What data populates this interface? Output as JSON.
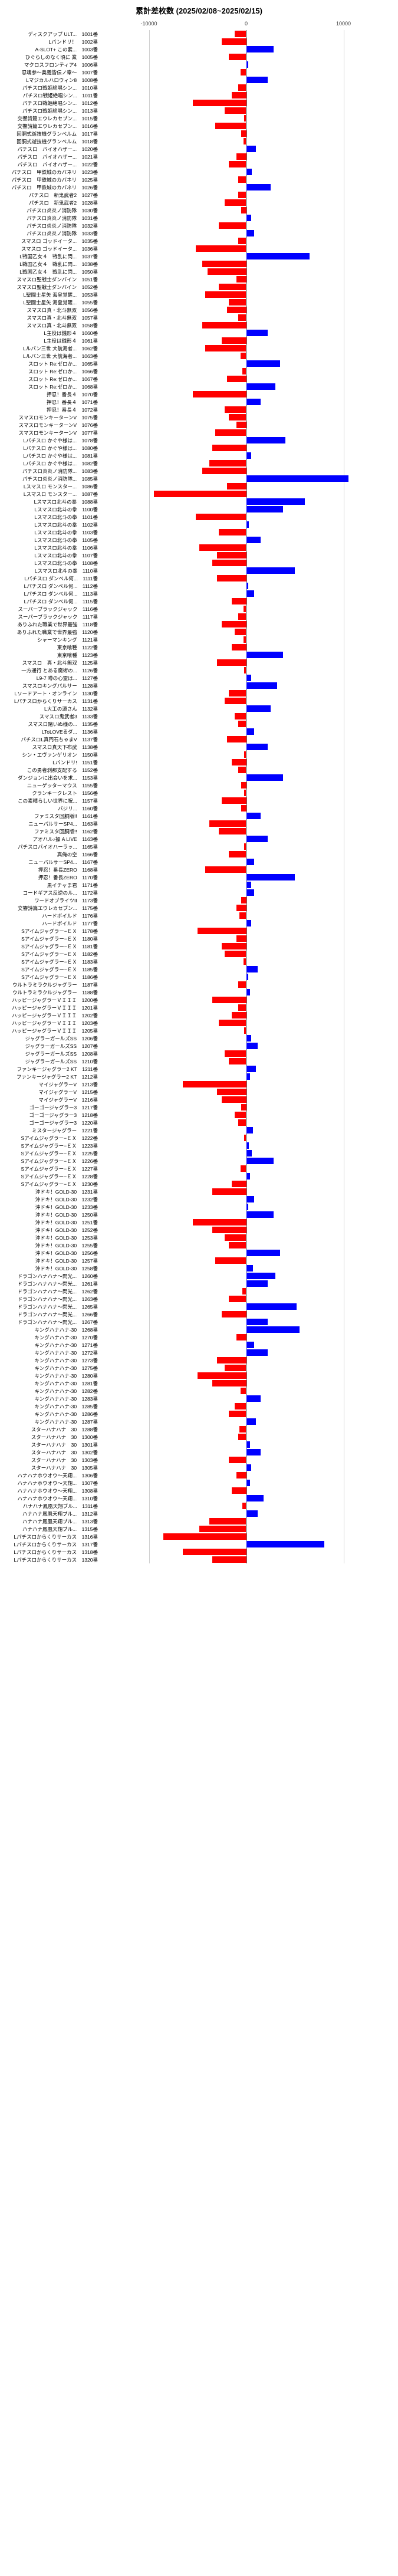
{
  "title": "累計差枚数 (2025/02/08~2025/02/15)",
  "axis": {
    "min": -15000,
    "max": 15000,
    "ticks": [
      -10000,
      0,
      10000
    ]
  },
  "colors": {
    "positive": "#0000ff",
    "negative": "#ff0000",
    "grid": "#d0d0d0",
    "zero": "#666666",
    "text": "#000000",
    "background": "#ffffff"
  },
  "rows": [
    {
      "label": "ディスクアップ ULT...",
      "id": "1001番",
      "value": -1200
    },
    {
      "label": "Lバンドリ！",
      "id": "1002番",
      "value": -2500
    },
    {
      "label": "A-SLOT+ この素...",
      "id": "1003番",
      "value": 2800
    },
    {
      "label": "ひぐらしのなく頃に 業",
      "id": "1005番",
      "value": -1800
    },
    {
      "label": "マクロスフロンティア4",
      "id": "1006番",
      "value": 200
    },
    {
      "label": "忍魂参〜奥義皆伝ノ章〜",
      "id": "1007番",
      "value": -600
    },
    {
      "label": "Lマジカルハロウィン8",
      "id": "1008番",
      "value": 2200
    },
    {
      "label": "パチスロ戦姫絶唱シン...",
      "id": "1010番",
      "value": -800
    },
    {
      "label": "パチスロ戦姫絶唱シン...",
      "id": "1011番",
      "value": -1500
    },
    {
      "label": "パチスロ戦姫絶唱シン...",
      "id": "1012番",
      "value": -5500
    },
    {
      "label": "パチスロ戦姫絶唱シン...",
      "id": "1013番",
      "value": -2200
    },
    {
      "label": "交響詩篇エウレカセブン...",
      "id": "1015番",
      "value": -200
    },
    {
      "label": "交響詩篇エウレカセブン...",
      "id": "1016番",
      "value": -3200
    },
    {
      "label": "回胴式遊技機グランベルム",
      "id": "1017番",
      "value": -500
    },
    {
      "label": "回胴式遊技機グランベルム",
      "id": "1018番",
      "value": -300
    },
    {
      "label": "パチスロ　バイオハザー...",
      "id": "1020番",
      "value": 1000
    },
    {
      "label": "パチスロ　バイオハザー...",
      "id": "1021番",
      "value": -1000
    },
    {
      "label": "パチスロ　バイオハザー...",
      "id": "1022番",
      "value": -1800
    },
    {
      "label": "パチスロ　甲鉄城のカバネリ",
      "id": "1023番",
      "value": 600
    },
    {
      "label": "パチスロ　甲鉄城のカバネリ",
      "id": "1025番",
      "value": -800
    },
    {
      "label": "パチスロ　甲鉄城のカバネリ",
      "id": "1026番",
      "value": 2500
    },
    {
      "label": "パチスロ　新鬼武者2",
      "id": "1027番",
      "value": -800
    },
    {
      "label": "パチスロ　新鬼武者2",
      "id": "1028番",
      "value": -2200
    },
    {
      "label": "パチスロ炎炎ノ消防隊",
      "id": "1030番",
      "value": -500
    },
    {
      "label": "パチスロ炎炎ノ消防隊",
      "id": "1031番",
      "value": 500
    },
    {
      "label": "パチスロ炎炎ノ消防隊",
      "id": "1032番",
      "value": -2800
    },
    {
      "label": "パチスロ炎炎ノ消防隊",
      "id": "1033番",
      "value": 800
    },
    {
      "label": "スマスロ ゴッドイータ...",
      "id": "1035番",
      "value": -800
    },
    {
      "label": "スマスロ ゴッドイータ...",
      "id": "1036番",
      "value": -5200
    },
    {
      "label": "L戦国乙女４　戦乱に閃...",
      "id": "1037番",
      "value": 6500
    },
    {
      "label": "L戦国乙女４　戦乱に閃...",
      "id": "1038番",
      "value": -4500
    },
    {
      "label": "L戦国乙女４　戦乱に閃...",
      "id": "1050番",
      "value": -4000
    },
    {
      "label": "スマスロ聖戦士ダンバイン",
      "id": "1051番",
      "value": -1000
    },
    {
      "label": "スマスロ聖戦士ダンバイン",
      "id": "1052番",
      "value": -2800
    },
    {
      "label": "L聖闘士星矢 海皇覚醒...",
      "id": "1053番",
      "value": -4200
    },
    {
      "label": "L聖闘士星矢 海皇覚醒...",
      "id": "1055番",
      "value": -1800
    },
    {
      "label": "スマスロ真・北斗無双",
      "id": "1056番",
      "value": -2000
    },
    {
      "label": "スマスロ真・北斗無双",
      "id": "1057番",
      "value": -800
    },
    {
      "label": "スマスロ真・北斗無双",
      "id": "1058番",
      "value": -4500
    },
    {
      "label": "L主役は銭形４",
      "id": "1060番",
      "value": 2200
    },
    {
      "label": "L主役は銭形４",
      "id": "1061番",
      "value": -2500
    },
    {
      "label": "Lルパン三世 大航海者...",
      "id": "1062番",
      "value": -4200
    },
    {
      "label": "Lルパン三世 大航海者...",
      "id": "1063番",
      "value": -600
    },
    {
      "label": "スロット Re:ゼロか...",
      "id": "1065番",
      "value": 3500
    },
    {
      "label": "スロット Re:ゼロか...",
      "id": "1066番",
      "value": -400
    },
    {
      "label": "スロット Re:ゼロか...",
      "id": "1067番",
      "value": -2000
    },
    {
      "label": "スロット Re:ゼロか...",
      "id": "1068番",
      "value": 3000
    },
    {
      "label": "押忍！番長４",
      "id": "1070番",
      "value": -5500
    },
    {
      "label": "押忍！番長４",
      "id": "1071番",
      "value": 1500
    },
    {
      "label": "押忍！番長４",
      "id": "1072番",
      "value": -2200
    },
    {
      "label": "スマスロモンキーターンV",
      "id": "1075番",
      "value": -1800
    },
    {
      "label": "スマスロモンキーターンV",
      "id": "1076番",
      "value": -1000
    },
    {
      "label": "スマスロモンキーターンV",
      "id": "1077番",
      "value": -3200
    },
    {
      "label": "Lパチスロ かぐや様は...",
      "id": "1078番",
      "value": 4000
    },
    {
      "label": "Lパチスロ かぐや様は...",
      "id": "1080番",
      "value": -3500
    },
    {
      "label": "Lパチスロ かぐや様は...",
      "id": "1081番",
      "value": 500
    },
    {
      "label": "Lパチスロ かぐや様は...",
      "id": "1082番",
      "value": -3800
    },
    {
      "label": "パチスロ炎炎ノ消防隊...",
      "id": "1083番",
      "value": -4500
    },
    {
      "label": "パチスロ炎炎ノ消防隊...",
      "id": "1085番",
      "value": 10500
    },
    {
      "label": "Lスマスロ モンスター...",
      "id": "1086番",
      "value": -2000
    },
    {
      "label": "Lスマスロ モンスター...",
      "id": "1087番",
      "value": -9500
    },
    {
      "label": "Lスマスロ北斗の拳",
      "id": "1088番",
      "value": 6000
    },
    {
      "label": "Lスマスロ北斗の拳",
      "id": "1100番",
      "value": 3800
    },
    {
      "label": "Lスマスロ北斗の拳",
      "id": "1101番",
      "value": -5200
    },
    {
      "label": "Lスマスロ北斗の拳",
      "id": "1102番",
      "value": 300
    },
    {
      "label": "Lスマスロ北斗の拳",
      "id": "1103番",
      "value": -2800
    },
    {
      "label": "Lスマスロ北斗の拳",
      "id": "1105番",
      "value": 1500
    },
    {
      "label": "Lスマスロ北斗の拳",
      "id": "1106番",
      "value": -4800
    },
    {
      "label": "Lスマスロ北斗の拳",
      "id": "1107番",
      "value": -3000
    },
    {
      "label": "Lスマスロ北斗の拳",
      "id": "1108番",
      "value": -3500
    },
    {
      "label": "Lスマスロ北斗の拳",
      "id": "1110番",
      "value": 5000
    },
    {
      "label": "Lパチスロ ダンベル何...",
      "id": "1111番",
      "value": -3000
    },
    {
      "label": "Lパチスロ ダンベル何...",
      "id": "1112番",
      "value": 200
    },
    {
      "label": "Lパチスロ ダンベル何...",
      "id": "1113番",
      "value": 800
    },
    {
      "label": "Lパチスロ ダンベル何...",
      "id": "1115番",
      "value": -1500
    },
    {
      "label": "スーパーブラックジャック",
      "id": "1116番",
      "value": -300
    },
    {
      "label": "スーパーブラックジャック",
      "id": "1117番",
      "value": -800
    },
    {
      "label": "ありふれた職業で世界最強",
      "id": "1118番",
      "value": -2500
    },
    {
      "label": "ありふれた職業で世界最強",
      "id": "1120番",
      "value": -1200
    },
    {
      "label": "シャーマンキング",
      "id": "1121番",
      "value": -300
    },
    {
      "label": "東京喰種",
      "id": "1122番",
      "value": -1500
    },
    {
      "label": "東京喰種",
      "id": "1123番",
      "value": 3800
    },
    {
      "label": "スマスロ　真・北斗無双",
      "id": "1125番",
      "value": -3000
    },
    {
      "label": "一方通行 とある魔術の...",
      "id": "1126番",
      "value": -200
    },
    {
      "label": "L9-7 噂の心霊は...",
      "id": "1127番",
      "value": 500
    },
    {
      "label": "スマスロキングパルサー",
      "id": "1128番",
      "value": 3200
    },
    {
      "label": "Lソードアート・オンライン",
      "id": "1130番",
      "value": -1800
    },
    {
      "label": "Lパチスロからくりサーカス",
      "id": "1131番",
      "value": -2200
    },
    {
      "label": "L大工の源さん",
      "id": "1132番",
      "value": 2500
    },
    {
      "label": "スマスロ鬼武者3",
      "id": "1133番",
      "value": -1200
    },
    {
      "label": "スマスロ賭いぬ様の...",
      "id": "1135番",
      "value": -800
    },
    {
      "label": "LToLOVEるダ...",
      "id": "1136番",
      "value": 800
    },
    {
      "label": "パチスロL真門石ちゃまV",
      "id": "1137番",
      "value": -2000
    },
    {
      "label": "スマスロ真天下布武",
      "id": "1138番",
      "value": 2200
    },
    {
      "label": "シン・エヴァンゲリオン",
      "id": "1150番",
      "value": -200
    },
    {
      "label": "Lバンドリ!",
      "id": "1151番",
      "value": -1500
    },
    {
      "label": "この勇者刹那支配する",
      "id": "1152番",
      "value": -800
    },
    {
      "label": "ダンジョンに出会いを求...",
      "id": "1153番",
      "value": 3800
    },
    {
      "label": "ニューゲッターマウス",
      "id": "1155番",
      "value": -500
    },
    {
      "label": "クランキークレスト",
      "id": "1156番",
      "value": -200
    },
    {
      "label": "この素晴らしい世界に祝...",
      "id": "1157番",
      "value": -2500
    },
    {
      "label": "バジリ...",
      "id": "1160番",
      "value": -500
    },
    {
      "label": "ファミスタ回胴版!!",
      "id": "1161番",
      "value": 1500
    },
    {
      "label": "ニューパルサーSP4...",
      "id": "1163番",
      "value": -3800
    },
    {
      "label": "ファミスタ回胴版!!",
      "id": "1162番",
      "value": -2800
    },
    {
      "label": "アオハル♪操 A LIVE",
      "id": "1163番",
      "value": 2200
    },
    {
      "label": "パチスロバイオハーラッ...",
      "id": "1165番",
      "value": -200
    },
    {
      "label": "真俺の空",
      "id": "1166番",
      "value": -1800
    },
    {
      "label": "ニューパルサーSP4...",
      "id": "1167番",
      "value": 800
    },
    {
      "label": "押忍！番長ZERO",
      "id": "1168番",
      "value": -4200
    },
    {
      "label": "押忍！番長ZERO",
      "id": "1170番",
      "value": 5000
    },
    {
      "label": "黒イチャま君",
      "id": "1171番",
      "value": 500
    },
    {
      "label": "コードギアス反逆のル...",
      "id": "1172番",
      "value": 800
    },
    {
      "label": "ワードオブライツII",
      "id": "1173番",
      "value": -500
    },
    {
      "label": "交響詩篇エウレカセブン...",
      "id": "1175番",
      "value": -1000
    },
    {
      "label": "ハードボイルド",
      "id": "1176番",
      "value": -700
    },
    {
      "label": "ハードボイルド",
      "id": "1177番",
      "value": 500
    },
    {
      "label": "Sアイムジャグラー−ＥＸ",
      "id": "1178番",
      "value": -5000
    },
    {
      "label": "Sアイムジャグラー−ＥＸ",
      "id": "1180番",
      "value": -1000
    },
    {
      "label": "Sアイムジャグラー−ＥＸ",
      "id": "1181番",
      "value": -2500
    },
    {
      "label": "Sアイムジャグラー−ＥＸ",
      "id": "1182番",
      "value": -2200
    },
    {
      "label": "Sアイムジャグラー−ＥＸ",
      "id": "1183番",
      "value": -300
    },
    {
      "label": "Sアイムジャグラー−ＥＸ",
      "id": "1185番",
      "value": 1200
    },
    {
      "label": "Sアイムジャグラー−ＥＸ",
      "id": "1186番",
      "value": 200
    },
    {
      "label": "ウルトラミラクルジャグラー",
      "id": "1187番",
      "value": -800
    },
    {
      "label": "ウルトラミラクルジャグラー",
      "id": "1188番",
      "value": 400
    },
    {
      "label": "ハッピージャグラーＶＩＩＩ",
      "id": "1200番",
      "value": -3500
    },
    {
      "label": "ハッピージャグラーＶＩＩＩ",
      "id": "1201番",
      "value": -800
    },
    {
      "label": "ハッピージャグラーＶＩＩＩ",
      "id": "1202番",
      "value": -1500
    },
    {
      "label": "ハッピージャグラーＶＩＩＩ",
      "id": "1203番",
      "value": -2800
    },
    {
      "label": "ハッピージャグラーＶＩＩＩ",
      "id": "1205番",
      "value": -200
    },
    {
      "label": "ジャグラーガールズSS",
      "id": "1206番",
      "value": 500
    },
    {
      "label": "ジャグラーガールズSS",
      "id": "1207番",
      "value": 1200
    },
    {
      "label": "ジャグラーガールズSS",
      "id": "1208番",
      "value": -2200
    },
    {
      "label": "ジャグラーガールズSS",
      "id": "1210番",
      "value": -1800
    },
    {
      "label": "ファンキージャグラー2 KT",
      "id": "1211番",
      "value": 1000
    },
    {
      "label": "ファンキージャグラー2 KT",
      "id": "1212番",
      "value": 400
    },
    {
      "label": "マイジャグラーV",
      "id": "1213番",
      "value": -6500
    },
    {
      "label": "マイジャグラーV",
      "id": "1215番",
      "value": -3000
    },
    {
      "label": "マイジャグラーV",
      "id": "1216番",
      "value": -2500
    },
    {
      "label": "ゴーゴージャグラー3",
      "id": "1217番",
      "value": -500
    },
    {
      "label": "ゴーゴージャグラー3",
      "id": "1218番",
      "value": -1200
    },
    {
      "label": "ゴーゴージャグラー3",
      "id": "1220番",
      "value": -800
    },
    {
      "label": "ミスタージャグラー",
      "id": "1221番",
      "value": 700
    },
    {
      "label": "Sアイムジャグラー−ＥＸ",
      "id": "1222番",
      "value": -200
    },
    {
      "label": "Sアイムジャグラー−ＥＸ",
      "id": "1223番",
      "value": 300
    },
    {
      "label": "Sアイムジャグラー−ＥＸ",
      "id": "1225番",
      "value": 600
    },
    {
      "label": "Sアイムジャグラー−ＥＸ",
      "id": "1226番",
      "value": 2800
    },
    {
      "label": "Sアイムジャグラー−ＥＸ",
      "id": "1227番",
      "value": -600
    },
    {
      "label": "Sアイムジャグラー−ＥＸ",
      "id": "1228番",
      "value": 400
    },
    {
      "label": "Sアイムジャグラー−ＥＸ",
      "id": "1230番",
      "value": -1500
    },
    {
      "label": "沖ドキ！GOLD-30",
      "id": "1231番",
      "value": -3500
    },
    {
      "label": "沖ドキ！GOLD-30",
      "id": "1232番",
      "value": 800
    },
    {
      "label": "沖ドキ！GOLD-30",
      "id": "1233番",
      "value": 200
    },
    {
      "label": "沖ドキ！GOLD-30",
      "id": "1250番",
      "value": 2800
    },
    {
      "label": "沖ドキ！GOLD-30",
      "id": "1251番",
      "value": -5500
    },
    {
      "label": "沖ドキ！GOLD-30",
      "id": "1252番",
      "value": -3500
    },
    {
      "label": "沖ドキ！GOLD-30",
      "id": "1253番",
      "value": -2200
    },
    {
      "label": "沖ドキ！GOLD-30",
      "id": "1255番",
      "value": -1800
    },
    {
      "label": "沖ドキ！GOLD-30",
      "id": "1256番",
      "value": 3500
    },
    {
      "label": "沖ドキ！GOLD-30",
      "id": "1257番",
      "value": -3200
    },
    {
      "label": "沖ドキ！GOLD-30",
      "id": "1258番",
      "value": 700
    },
    {
      "label": "ドラゴンハナハナ〜閃光...",
      "id": "1260番",
      "value": 3000
    },
    {
      "label": "ドラゴンハナハナ〜閃光...",
      "id": "1261番",
      "value": 2200
    },
    {
      "label": "ドラゴンハナハナ〜閃光...",
      "id": "1262番",
      "value": -400
    },
    {
      "label": "ドラゴンハナハナ〜閃光...",
      "id": "1263番",
      "value": -1800
    },
    {
      "label": "ドラゴンハナハナ〜閃光...",
      "id": "1265番",
      "value": 5200
    },
    {
      "label": "ドラゴンハナハナ〜閃光...",
      "id": "1266番",
      "value": -2500
    },
    {
      "label": "ドラゴンハナハナ〜閃光...",
      "id": "1267番",
      "value": 2200
    },
    {
      "label": "キングハナハナ-30",
      "id": "1268番",
      "value": 5500
    },
    {
      "label": "キングハナハナ-30",
      "id": "1270番",
      "value": -1000
    },
    {
      "label": "キングハナハナ-30",
      "id": "1271番",
      "value": 800
    },
    {
      "label": "キングハナハナ-30",
      "id": "1272番",
      "value": 2200
    },
    {
      "label": "キングハナハナ-30",
      "id": "1273番",
      "value": -3000
    },
    {
      "label": "キングハナハナ-30",
      "id": "1275番",
      "value": -2200
    },
    {
      "label": "キングハナハナ-30",
      "id": "1280番",
      "value": -5000
    },
    {
      "label": "キングハナハナ-30",
      "id": "1281番",
      "value": -3500
    },
    {
      "label": "キングハナハナ-30",
      "id": "1282番",
      "value": -600
    },
    {
      "label": "キングハナハナ-30",
      "id": "1283番",
      "value": 1500
    },
    {
      "label": "キングハナハナ-30",
      "id": "1285番",
      "value": -1200
    },
    {
      "label": "キングハナハナ-30",
      "id": "1286番",
      "value": -1800
    },
    {
      "label": "キングハナハナ-30",
      "id": "1287番",
      "value": 1000
    },
    {
      "label": "スターハナハナ　30",
      "id": "1288番",
      "value": -700
    },
    {
      "label": "スターハナハナ　30",
      "id": "1300番",
      "value": -800
    },
    {
      "label": "スターハナハナ　30",
      "id": "1301番",
      "value": 400
    },
    {
      "label": "スターハナハナ　30",
      "id": "1302番",
      "value": 1500
    },
    {
      "label": "スターハナハナ　30",
      "id": "1303番",
      "value": -1800
    },
    {
      "label": "スターハナハナ　30",
      "id": "1305番",
      "value": 500
    },
    {
      "label": "ハナハナホウオウ〜天翔...",
      "id": "1306番",
      "value": -1000
    },
    {
      "label": "ハナハナホウオウ〜天翔...",
      "id": "1307番",
      "value": 400
    },
    {
      "label": "ハナハナホウオウ〜天翔...",
      "id": "1308番",
      "value": -1500
    },
    {
      "label": "ハナハナホウオウ〜天翔...",
      "id": "1310番",
      "value": 1800
    },
    {
      "label": "ハナハナ鳳凰天翔ブル...",
      "id": "1311番",
      "value": -400
    },
    {
      "label": "ハナハナ鳳凰天翔ブル...",
      "id": "1312番",
      "value": 1200
    },
    {
      "label": "ハナハナ鳳凰天翔ブル...",
      "id": "1313番",
      "value": -3800
    },
    {
      "label": "ハナハナ鳳凰天翔ブル...",
      "id": "1315番",
      "value": -4800
    },
    {
      "label": "Lパチスロからくりサーカス",
      "id": "1316番",
      "value": -8500
    },
    {
      "label": "Lパチスロからくりサーカス",
      "id": "1317番",
      "value": 8000
    },
    {
      "label": "Lパチスロからくりサーカス",
      "id": "1318番",
      "value": -6500
    },
    {
      "label": "Lパチスロからくりサーカス",
      "id": "1320番",
      "value": -3500
    }
  ]
}
